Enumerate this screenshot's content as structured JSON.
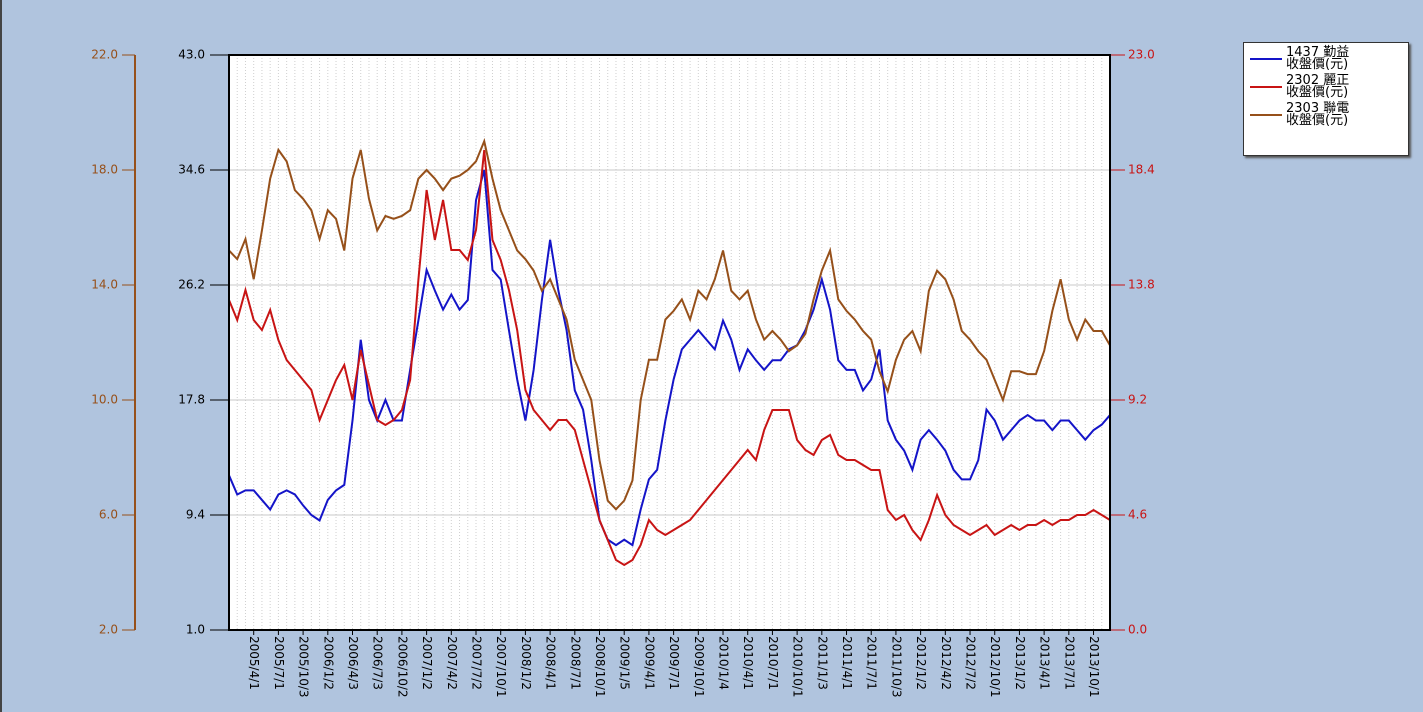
{
  "chart_data": {
    "type": "line",
    "categories": [
      null,
      null,
      null,
      "2005/4/1",
      null,
      null,
      "2005/7/1",
      null,
      null,
      "2005/10/3",
      null,
      null,
      "2006/1/2",
      null,
      null,
      "2006/4/3",
      null,
      null,
      "2006/7/3",
      null,
      null,
      "2006/10/2",
      null,
      null,
      "2007/1/2",
      null,
      null,
      "2007/4/2",
      null,
      null,
      "2007/7/2",
      null,
      null,
      "2007/10/1",
      null,
      null,
      "2008/1/2",
      null,
      null,
      "2008/4/1",
      null,
      null,
      "2008/7/1",
      null,
      null,
      "2008/10/1",
      null,
      null,
      "2009/1/5",
      null,
      null,
      "2009/4/1",
      null,
      null,
      "2009/7/1",
      null,
      null,
      "2009/10/1",
      null,
      null,
      "2010/1/4",
      null,
      null,
      "2010/4/1",
      null,
      null,
      "2010/7/1",
      null,
      null,
      "2010/10/1",
      null,
      null,
      "2011/1/3",
      null,
      null,
      "2011/4/1",
      null,
      null,
      "2011/7/1",
      null,
      null,
      "2011/10/3",
      null,
      null,
      "2012/1/2",
      null,
      null,
      "2012/4/2",
      null,
      null,
      "2012/7/2",
      null,
      null,
      "2012/10/1",
      null,
      null,
      "2013/1/2",
      null,
      null,
      "2013/4/1",
      null,
      null,
      "2013/7/1",
      null,
      null,
      "2013/10/1",
      null,
      null
    ],
    "series": [
      {
        "name": "1437 勤益收盤價(元)",
        "color": "#1414c8",
        "axis": "y",
        "values": [
          12.3,
          10.9,
          11.2,
          11.2,
          10.5,
          9.8,
          10.9,
          11.2,
          10.9,
          10.1,
          9.4,
          9.0,
          10.5,
          11.2,
          11.6,
          16.3,
          22.2,
          17.8,
          16.3,
          17.8,
          16.3,
          16.3,
          20.0,
          23.6,
          27.3,
          25.8,
          24.4,
          25.5,
          24.4,
          25.1,
          32.4,
          34.6,
          27.3,
          26.6,
          22.9,
          19.3,
          16.3,
          20.0,
          25.1,
          29.5,
          25.8,
          22.9,
          18.5,
          17.1,
          13.4,
          9.0,
          7.6,
          7.2,
          7.6,
          7.2,
          9.8,
          12.0,
          12.7,
          16.3,
          19.3,
          21.5,
          22.2,
          22.9,
          22.2,
          21.5,
          23.6,
          22.2,
          20.0,
          21.5,
          20.7,
          20.0,
          20.7,
          20.7,
          21.5,
          21.8,
          22.9,
          24.4,
          26.6,
          24.4,
          20.7,
          20.0,
          20.0,
          18.5,
          19.3,
          21.5,
          16.3,
          14.9,
          14.1,
          12.7,
          14.9,
          15.6,
          14.9,
          14.1,
          12.7,
          12.0,
          12.0,
          13.4,
          17.1,
          16.3,
          14.9,
          15.6,
          16.3,
          16.7,
          16.3,
          16.3,
          15.6,
          16.3,
          16.3,
          15.6,
          14.9,
          15.6,
          16.0,
          16.7
        ]
      },
      {
        "name": "2302 麗正收盤價(元)",
        "color": "#c81414",
        "axis": "y2",
        "values": [
          13.2,
          12.4,
          13.6,
          12.4,
          12.0,
          12.8,
          11.6,
          10.8,
          10.4,
          10.0,
          9.6,
          8.4,
          9.2,
          10.0,
          10.6,
          9.2,
          11.2,
          9.8,
          8.4,
          8.2,
          8.4,
          8.8,
          10.0,
          14.0,
          17.6,
          15.6,
          17.2,
          15.2,
          15.2,
          14.8,
          16.0,
          19.2,
          15.6,
          14.8,
          13.6,
          12.0,
          9.6,
          8.8,
          8.4,
          8.0,
          8.4,
          8.4,
          8.0,
          6.8,
          5.6,
          4.4,
          3.6,
          2.8,
          2.6,
          2.8,
          3.4,
          4.4,
          4.0,
          3.8,
          4.0,
          4.2,
          4.4,
          4.8,
          5.2,
          5.6,
          6.0,
          6.4,
          6.8,
          7.2,
          6.8,
          8.0,
          8.8,
          8.8,
          8.8,
          7.6,
          7.2,
          7.0,
          7.6,
          7.8,
          7.0,
          6.8,
          6.8,
          6.6,
          6.4,
          6.4,
          4.8,
          4.4,
          4.6,
          4.0,
          3.6,
          4.4,
          5.4,
          4.6,
          4.2,
          4.0,
          3.8,
          4.0,
          4.2,
          3.8,
          4.0,
          4.2,
          4.0,
          4.2,
          4.2,
          4.4,
          4.2,
          4.4,
          4.4,
          4.6,
          4.6,
          4.8,
          4.6,
          4.4
        ]
      },
      {
        "name": "2303 聯電收盤價(元)",
        "color": "#96501a",
        "axis": "y3",
        "values": [
          15.2,
          14.9,
          15.6,
          14.2,
          15.9,
          17.7,
          18.7,
          18.3,
          17.3,
          17.0,
          16.6,
          15.6,
          16.6,
          16.3,
          15.2,
          17.7,
          18.7,
          17.0,
          15.9,
          16.4,
          16.3,
          16.4,
          16.6,
          17.7,
          18.0,
          17.7,
          17.3,
          17.7,
          17.8,
          18.0,
          18.3,
          19.0,
          17.7,
          16.6,
          15.9,
          15.2,
          14.9,
          14.5,
          13.8,
          14.2,
          13.5,
          12.8,
          11.4,
          10.7,
          10.0,
          7.9,
          6.5,
          6.2,
          6.5,
          7.2,
          10.0,
          11.4,
          11.4,
          12.8,
          13.1,
          13.5,
          12.8,
          13.8,
          13.5,
          14.2,
          15.2,
          13.8,
          13.5,
          13.8,
          12.8,
          12.1,
          12.4,
          12.1,
          11.7,
          11.9,
          12.3,
          13.5,
          14.5,
          15.2,
          13.5,
          13.1,
          12.8,
          12.4,
          12.1,
          11.0,
          10.3,
          11.4,
          12.1,
          12.4,
          11.7,
          13.8,
          14.5,
          14.2,
          13.5,
          12.4,
          12.1,
          11.7,
          11.4,
          10.7,
          10.0,
          11.0,
          11.0,
          10.9,
          10.9,
          11.7,
          13.1,
          14.2,
          12.8,
          12.1,
          12.8,
          12.4,
          12.4,
          11.9
        ]
      }
    ],
    "ylim": [
      1,
      43
    ],
    "yticks": [
      {
        "value": 1,
        "label": "1.0"
      },
      9.4,
      17.8,
      26.2,
      34.6,
      {
        "value": 43,
        "label": "43.0"
      }
    ],
    "y2lim": [
      0,
      23
    ],
    "y2ticks": [
      {
        "value": 0,
        "label": "0.0"
      },
      4.6,
      9.2,
      13.8,
      18.4,
      {
        "value": 23,
        "label": "23.0"
      }
    ],
    "y3lim": [
      2,
      22
    ],
    "y3ticks": [
      {
        "value": 2,
        "label": "2.0"
      },
      {
        "value": 6,
        "label": "6.0"
      },
      {
        "value": 10,
        "label": "10.0"
      },
      {
        "value": 14,
        "label": "14.0"
      },
      {
        "value": 18,
        "label": "18.0"
      },
      {
        "value": 22,
        "label": "22.0"
      }
    ],
    "grid": true,
    "legend": "upper right"
  }
}
